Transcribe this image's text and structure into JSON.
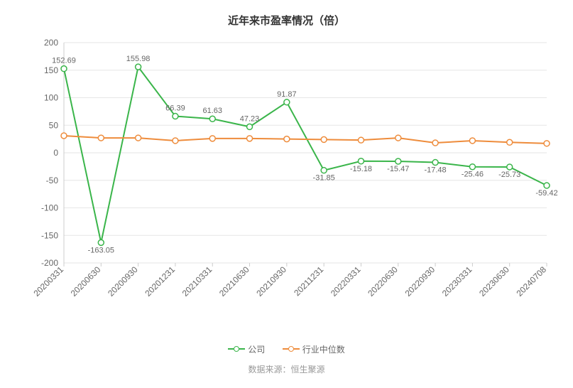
{
  "chart": {
    "type": "line",
    "title": "近年来市盈率情况（倍）",
    "title_fontsize": 15,
    "title_color": "#333333",
    "background_color": "#ffffff",
    "grid_color": "#e6e6e6",
    "axis_line_color": "#cccccc",
    "label_color": "#666666",
    "label_fontsize": 12,
    "ylim": [
      -200,
      200
    ],
    "ytick_step": 50,
    "yticks": [
      -200,
      -150,
      -100,
      -50,
      0,
      50,
      100,
      150,
      200
    ],
    "categories": [
      "20200331",
      "20200630",
      "20200930",
      "20201231",
      "20210331",
      "20210630",
      "20210930",
      "20211231",
      "20220331",
      "20220630",
      "20220930",
      "20230331",
      "20230630",
      "20240708"
    ],
    "xlabel_rotation": -45,
    "series": [
      {
        "name": "公司",
        "color": "#3ab54a",
        "line_width": 2,
        "marker": "circle",
        "marker_size": 4,
        "marker_fill": "#ffffff",
        "values": [
          152.69,
          -163.05,
          155.98,
          66.39,
          61.63,
          47.23,
          91.87,
          -31.85,
          -15.18,
          -15.47,
          -17.48,
          -25.46,
          -25.73,
          -59.42
        ],
        "show_labels": true,
        "labels": [
          "152.69",
          "-163.05",
          "155.98",
          "66.39",
          "61.63",
          "47.23",
          "91.87",
          "-31.85",
          "-15.18",
          "-15.47",
          "-17.48",
          "-25.46",
          "-25.73",
          "-59.42"
        ]
      },
      {
        "name": "行业中位数",
        "color": "#ee8c3c",
        "line_width": 2,
        "marker": "circle",
        "marker_size": 4,
        "marker_fill": "#ffffff",
        "values": [
          31,
          27,
          27,
          22,
          26,
          26,
          25,
          24,
          23,
          27,
          18,
          22,
          19,
          17
        ],
        "show_labels": false
      }
    ],
    "data_label_fontsize": 11,
    "data_label_color": "#666666"
  },
  "legend": {
    "label_company": "公司",
    "label_median": "行业中位数"
  },
  "source": {
    "text": "数据来源：恒生聚源"
  }
}
